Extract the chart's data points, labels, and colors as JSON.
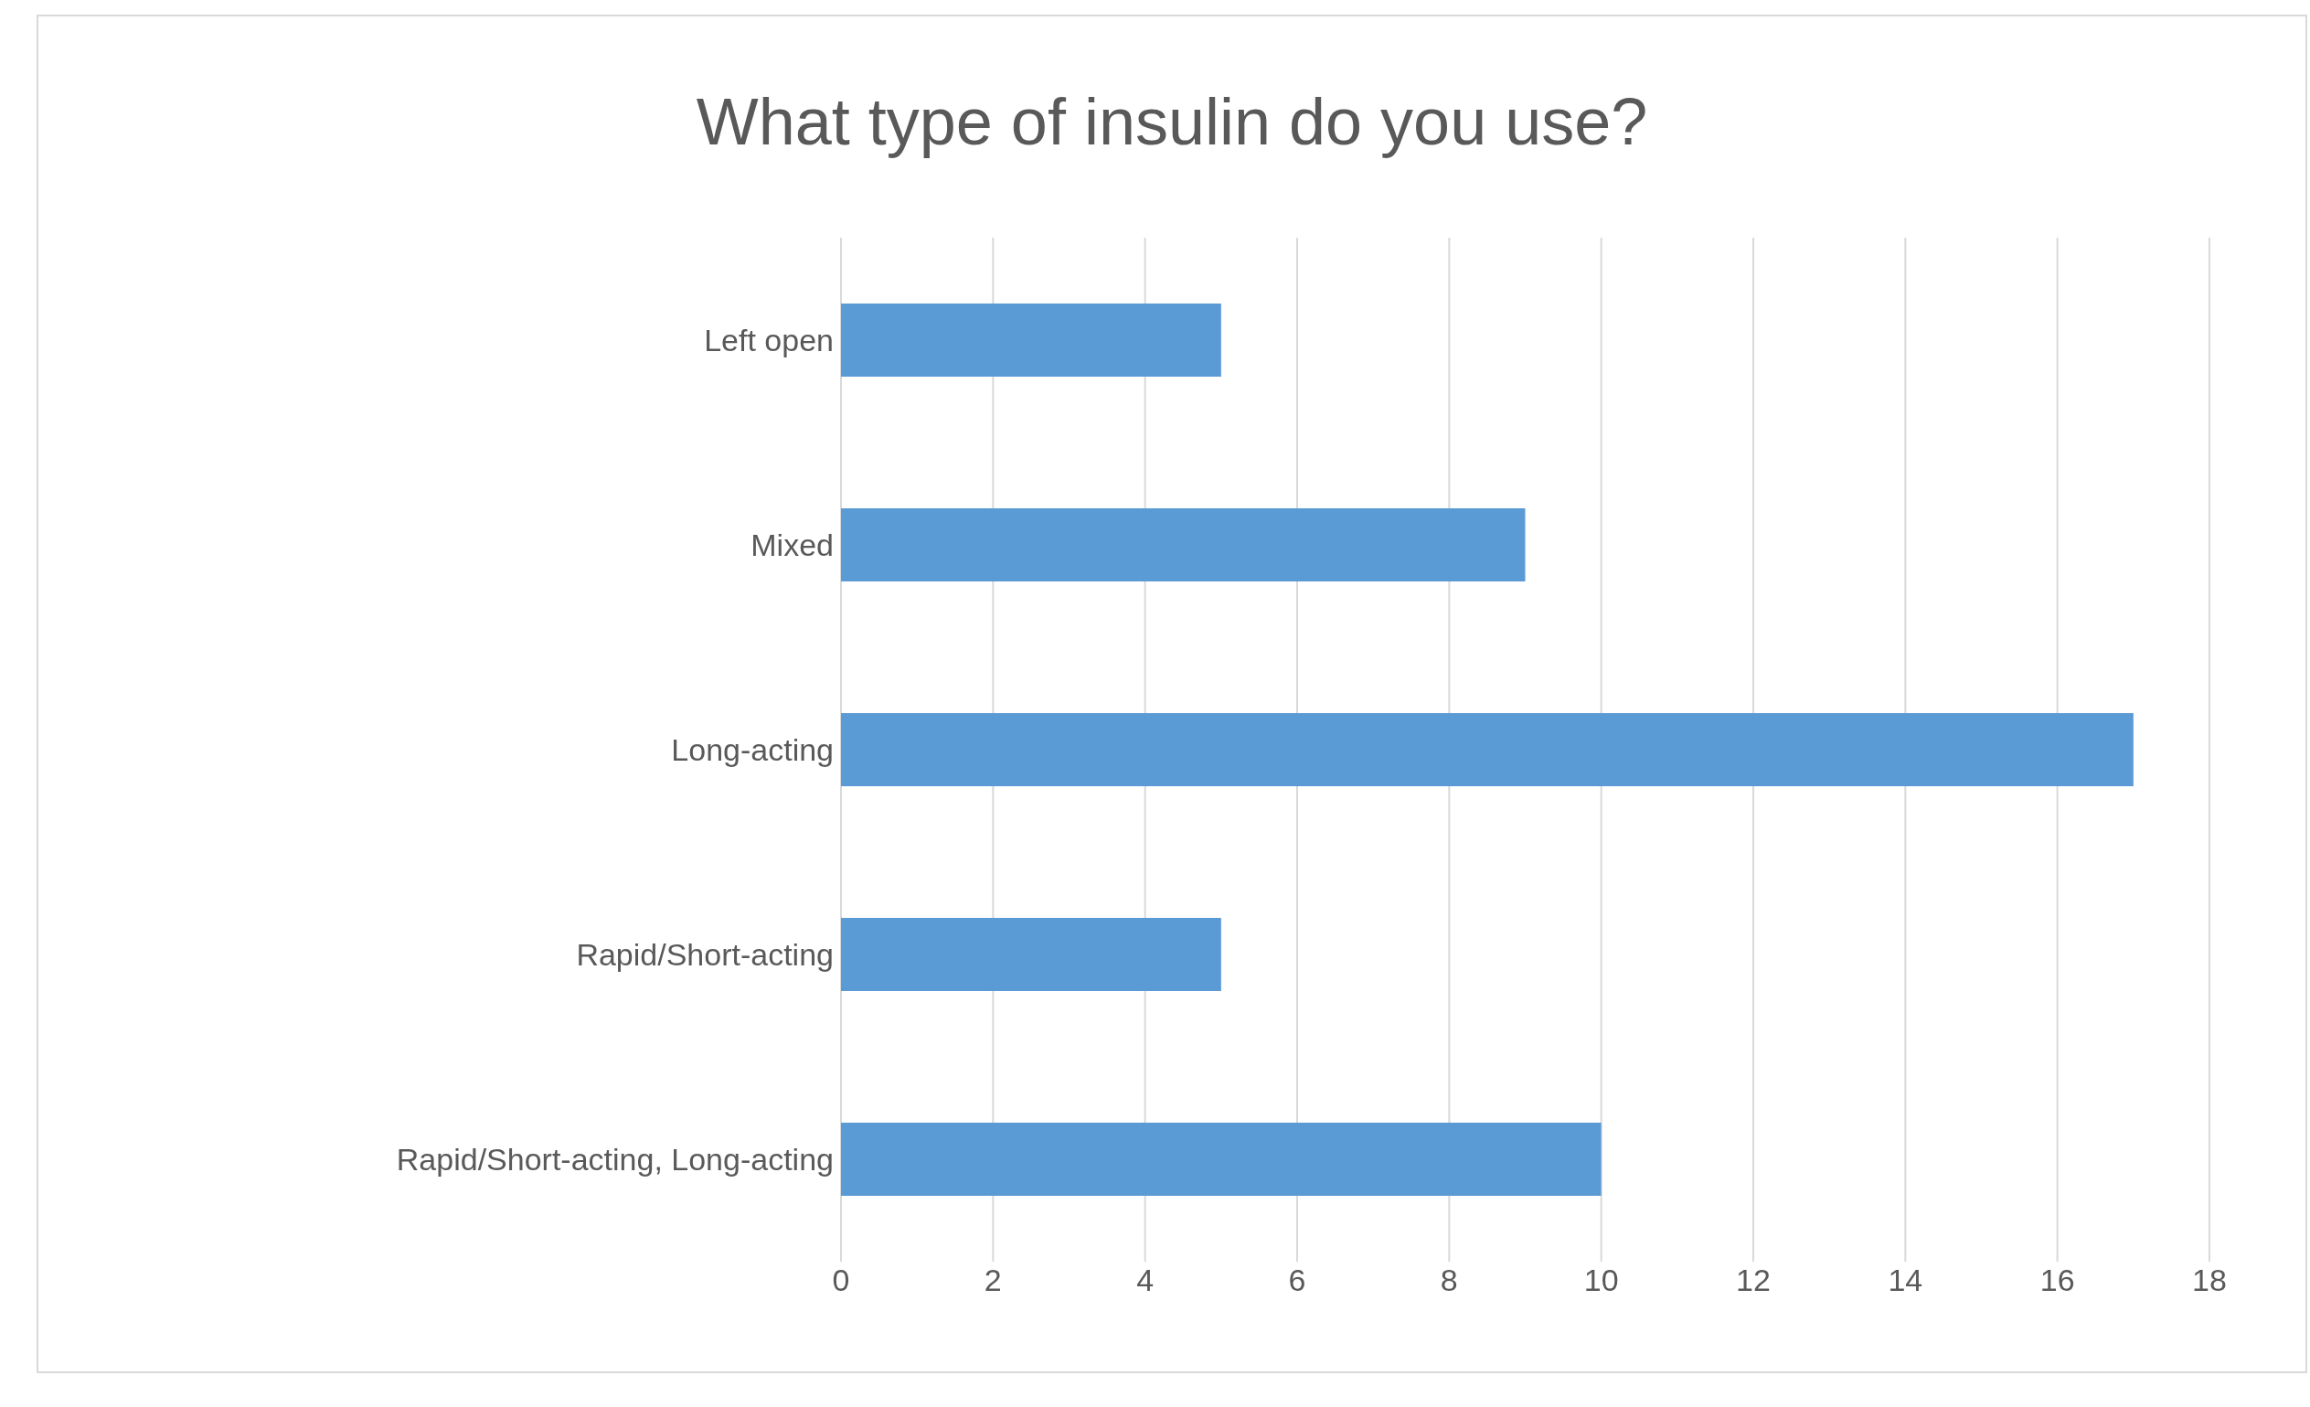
{
  "chart_data": {
    "type": "bar",
    "orientation": "horizontal",
    "title": "What type of insulin do you use?",
    "categories": [
      "Left open",
      "Mixed",
      "Long-acting",
      "Rapid/Short-acting",
      "Rapid/Short-acting, Long-acting"
    ],
    "values": [
      5,
      9,
      17,
      5,
      10
    ],
    "color": "#5b9bd5",
    "xlim": [
      0,
      18
    ],
    "xticks": [
      0,
      2,
      4,
      6,
      8,
      10,
      12,
      14,
      16,
      18
    ],
    "grid": "x"
  }
}
